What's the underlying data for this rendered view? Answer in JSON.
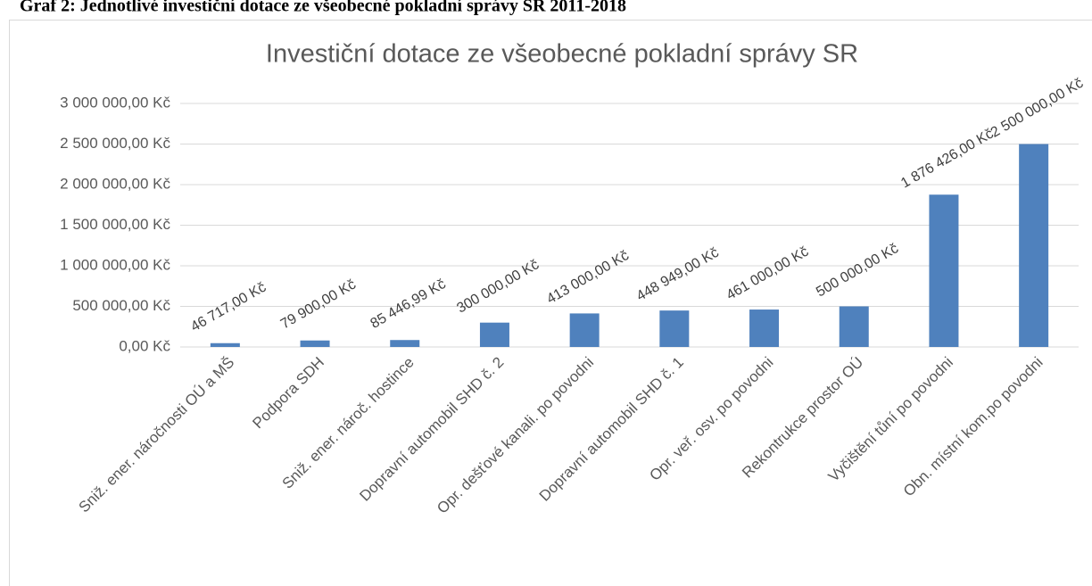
{
  "caption": "Graf 2: Jednotlivé investiční dotace ze všeobecné pokladní správy SR 2011-2018",
  "chart_data": {
    "type": "bar",
    "title": "Investiční dotace ze všeobecné pokladní správy SR",
    "categories": [
      "Sniž. ener. náročnosti OÚ a MŠ",
      "Podpora SDH",
      "Sniž. ener. nároč. hostince",
      "Dopravní automobil SHD č. 2",
      "Opr. dešťové kanali. po povodni",
      "Dopravní automobil SHD č. 1",
      "Opr. veř. osv. po povodni",
      "Rekontrukce prostor OÚ",
      "Vyčištění tůní po povodni",
      "Obn. místní kom.po povodni"
    ],
    "values": [
      46717,
      79900,
      85446.99,
      300000,
      413000,
      448949,
      461000,
      500000,
      1876426,
      2500000
    ],
    "value_labels": [
      "46 717,00 Kč",
      "79 900,00 Kč",
      "85 446,99 Kč",
      "300 000,00 Kč",
      "413 000,00 Kč",
      "448 949,00 Kč",
      "461 000,00 Kč",
      "500 000,00 Kč",
      "1 876 426,00 Kč",
      "2 500 000,00 Kč"
    ],
    "color": "#4f81bd",
    "ylim": [
      0,
      3000000
    ],
    "yticks": [
      {
        "value": 0,
        "label": "0,00 Kč"
      },
      {
        "value": 500000,
        "label": "500 000,00 Kč"
      },
      {
        "value": 1000000,
        "label": "1 000 000,00 Kč"
      },
      {
        "value": 1500000,
        "label": "1 500 000,00 Kč"
      },
      {
        "value": 2000000,
        "label": "2 000 000,00 Kč"
      },
      {
        "value": 2500000,
        "label": "2 500 000,00 Kč"
      },
      {
        "value": 3000000,
        "label": "3 000 000,00 Kč"
      }
    ],
    "grid": true
  }
}
